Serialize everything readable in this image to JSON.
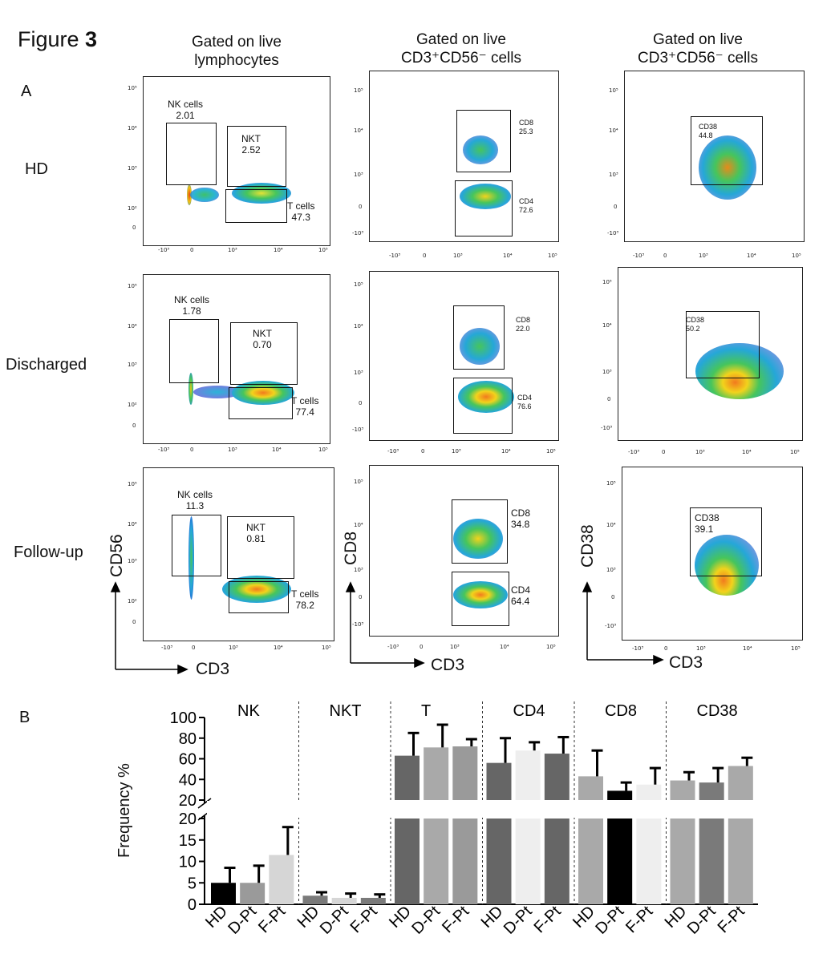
{
  "figure": {
    "prefix": "Figure ",
    "number": "3"
  },
  "panel_a_label": "A",
  "panel_b_label": "B",
  "columns": [
    {
      "line1": "Gated on live",
      "line2": "lymphocytes"
    },
    {
      "line1": "Gated on live",
      "line2": "CD3⁺CD56⁻ cells"
    },
    {
      "line1": "Gated on live",
      "line2": "CD3⁺CD56⁻ cells"
    }
  ],
  "rows": [
    "HD",
    "Discharged",
    "Follow-up"
  ],
  "ticks": {
    "y": [
      "10⁵",
      "10⁴",
      "10³",
      "10²",
      "0"
    ],
    "y2": [
      "10⁵",
      "10⁴",
      "10³",
      "0",
      "-10³"
    ],
    "x": [
      "-10³",
      "0",
      "10³",
      "10⁴",
      "10⁵"
    ]
  },
  "gates": {
    "HD": {
      "nk": {
        "name": "NK cells",
        "value": "2.01"
      },
      "nkt": {
        "name": "NKT",
        "value": "2.52"
      },
      "t": {
        "name": "T cells",
        "value": "47.3"
      },
      "cd8": {
        "name": "CD8",
        "value": "25.3"
      },
      "cd4": {
        "name": "CD4",
        "value": "72.6"
      },
      "cd38": {
        "name": "CD38",
        "value": "44.8"
      }
    },
    "Discharged": {
      "nk": {
        "name": "NK cells",
        "value": "1.78"
      },
      "nkt": {
        "name": "NKT",
        "value": "0.70"
      },
      "t": {
        "name": "T cells",
        "value": "77.4"
      },
      "cd8": {
        "name": "CD8",
        "value": "22.0"
      },
      "cd4": {
        "name": "CD4",
        "value": "76.6"
      },
      "cd38": {
        "name": "CD38",
        "value": "50.2"
      }
    },
    "Follow-up": {
      "nk": {
        "name": "NK cells",
        "value": "11.3"
      },
      "nkt": {
        "name": "NKT",
        "value": "0.81"
      },
      "t": {
        "name": "T cells",
        "value": "78.2"
      },
      "cd8": {
        "name": "CD8",
        "value": "34.8"
      },
      "cd4": {
        "name": "CD4",
        "value": "64.4"
      },
      "cd38": {
        "name": "CD38",
        "value": "39.1"
      }
    }
  },
  "axes": {
    "col1": {
      "y": "CD56",
      "x": "CD3"
    },
    "col2": {
      "y": "CD8",
      "x": "CD3"
    },
    "col3": {
      "y": "CD38",
      "x": "CD3"
    }
  },
  "chart_data": {
    "type": "bar",
    "title": "",
    "ylabel": "Frequency %",
    "xlabel": "",
    "broken_axis": true,
    "lower_segment": {
      "ylim": [
        0,
        20
      ],
      "ticks": [
        "0",
        "5",
        "10",
        "15",
        "20"
      ]
    },
    "upper_segment": {
      "ylim": [
        20,
        100
      ],
      "ticks": [
        "20",
        "40",
        "60",
        "80",
        "100"
      ]
    },
    "group_labels": [
      "HD",
      "D-Pt",
      "F-Pt"
    ],
    "groups": [
      {
        "name": "NK",
        "values": [
          5,
          5,
          11.5
        ],
        "errors": [
          3.5,
          4,
          6.5
        ],
        "colors": [
          "#000000",
          "#9a9a9a",
          "#d6d6d6"
        ]
      },
      {
        "name": "NKT",
        "values": [
          2,
          1.5,
          1.5
        ],
        "errors": [
          0.8,
          1,
          0.8
        ],
        "colors": [
          "#7a7a7a",
          "#d6d6d6",
          "#7a7a7a"
        ]
      },
      {
        "name": "T",
        "values": [
          63,
          71,
          72
        ],
        "errors": [
          22,
          22,
          7
        ],
        "colors": [
          "#666666",
          "#a9a9a9",
          "#9a9a9a"
        ]
      },
      {
        "name": "CD4",
        "values": [
          56,
          68,
          65
        ],
        "errors": [
          24,
          8,
          16
        ],
        "colors": [
          "#666666",
          "#eeeeee",
          "#666666"
        ]
      },
      {
        "name": "CD8",
        "values": [
          43,
          29,
          35
        ],
        "errors": [
          25,
          8,
          16
        ],
        "colors": [
          "#a9a9a9",
          "#000000",
          "#eeeeee"
        ]
      },
      {
        "name": "CD38",
        "values": [
          39,
          37,
          53
        ],
        "errors": [
          8,
          14,
          8
        ],
        "colors": [
          "#a9a9a9",
          "#7a7a7a",
          "#a9a9a9"
        ]
      }
    ]
  }
}
